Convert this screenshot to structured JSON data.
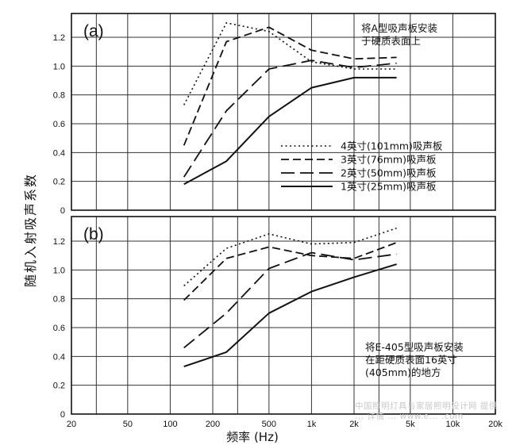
{
  "figure": {
    "ylabel": "随机入射吸声系数",
    "xlabel": "频率 (Hz)",
    "x_ticks": [
      {
        "value": 20,
        "label": "20"
      },
      {
        "value": 50,
        "label": "50"
      },
      {
        "value": 100,
        "label": "100"
      },
      {
        "value": 200,
        "label": "200"
      },
      {
        "value": 500,
        "label": "500"
      },
      {
        "value": 1000,
        "label": "1k"
      },
      {
        "value": 2000,
        "label": "2k"
      },
      {
        "value": 5000,
        "label": "5k"
      },
      {
        "value": 10000,
        "label": "10k"
      },
      {
        "value": 20000,
        "label": "20k"
      }
    ],
    "watermark": "中国照明灯具与家居照明设计网 提供 ... 详情 ... www.e... .com"
  },
  "chart_data": [
    {
      "type": "line",
      "panel_label": "(a)",
      "annotation": [
        "将A型吸声板安装",
        "于硬质表面上"
      ],
      "x_scale": "log",
      "xlim": [
        20,
        20000
      ],
      "ylim": [
        0,
        1.4
      ],
      "y_ticks": [
        "0",
        "0.2",
        "0.4",
        "0.6",
        "0.8",
        "1.0",
        "1.2"
      ],
      "grid": true,
      "legend_position": "center-right",
      "series": [
        {
          "name": "4英寸(101mm)吸声板",
          "style": "dotted",
          "x": [
            125,
            250,
            500,
            1000,
            2000,
            4000
          ],
          "y": [
            0.73,
            1.3,
            1.24,
            1.03,
            0.98,
            0.98
          ]
        },
        {
          "name": "3英寸(76mm)吸声板",
          "style": "dashed",
          "x": [
            125,
            250,
            500,
            1000,
            2000,
            4000
          ],
          "y": [
            0.45,
            1.17,
            1.27,
            1.11,
            1.05,
            1.06
          ]
        },
        {
          "name": "2英寸(50mm)吸声板",
          "style": "long-dash",
          "x": [
            125,
            250,
            500,
            1000,
            2000,
            4000
          ],
          "y": [
            0.23,
            0.69,
            0.98,
            1.04,
            0.99,
            1.02
          ]
        },
        {
          "name": "1英寸(25mm)吸声板",
          "style": "solid",
          "x": [
            125,
            250,
            500,
            1000,
            2000,
            4000
          ],
          "y": [
            0.18,
            0.34,
            0.65,
            0.85,
            0.92,
            0.92
          ]
        }
      ]
    },
    {
      "type": "line",
      "panel_label": "(b)",
      "annotation": [
        "将E-405型吸声板安装",
        "在距硬质表面16英寸",
        "(405mm)的地方"
      ],
      "x_scale": "log",
      "xlim": [
        20,
        20000
      ],
      "ylim": [
        0,
        1.4
      ],
      "y_ticks": [
        "0",
        "0.2",
        "0.4",
        "0.6",
        "0.8",
        "1.0",
        "1.2"
      ],
      "grid": true,
      "series": [
        {
          "name": "4英寸(101mm)吸声板",
          "style": "dotted",
          "x": [
            125,
            250,
            500,
            1000,
            2000,
            4000
          ],
          "y": [
            0.89,
            1.15,
            1.25,
            1.18,
            1.19,
            1.29
          ]
        },
        {
          "name": "3英寸(76mm)吸声板",
          "style": "dashed",
          "x": [
            125,
            250,
            500,
            1000,
            2000,
            4000
          ],
          "y": [
            0.79,
            1.08,
            1.16,
            1.1,
            1.08,
            1.19
          ]
        },
        {
          "name": "2英寸(50mm)吸声板",
          "style": "long-dash",
          "x": [
            125,
            250,
            500,
            1000,
            2000,
            4000
          ],
          "y": [
            0.46,
            0.7,
            1.01,
            1.12,
            1.07,
            1.11
          ]
        },
        {
          "name": "1英寸(25mm)吸声板",
          "style": "solid",
          "x": [
            125,
            250,
            500,
            1000,
            2000,
            4000
          ],
          "y": [
            0.33,
            0.43,
            0.7,
            0.85,
            0.95,
            1.04
          ]
        }
      ]
    }
  ]
}
